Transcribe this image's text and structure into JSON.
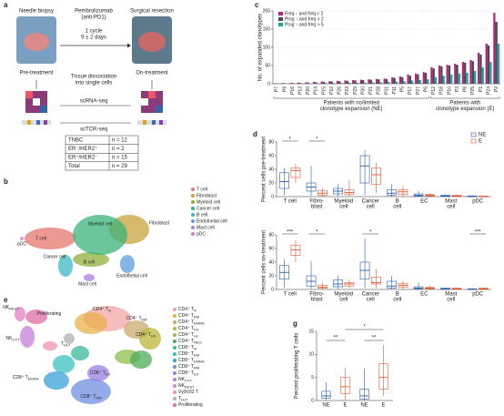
{
  "figure": {
    "a": {
      "letter": "a",
      "needle": "Needle biopsy",
      "drug": "Pembrolizumab",
      "drug2": "(anti-PD1)",
      "cycle": "1 cycle",
      "days": "9 ± 2 days",
      "surgery": "Surgical resection",
      "pre": "Pre-treatment",
      "on": "On-treatment",
      "dissoc1": "Tissue dissociation",
      "dissoc2": "into single cells",
      "rna": "scRNA-seq",
      "tcr": "scTCR-seq",
      "table": [
        [
          "TNBC",
          "n = 12"
        ],
        [
          "ER⁻/HER2⁺",
          "n = 2"
        ],
        [
          "ER⁺/HER2⁻",
          "n = 15"
        ],
        [
          "Total",
          "n = 29"
        ]
      ]
    },
    "b": {
      "letter": "b",
      "legend": [
        {
          "name": "T cell",
          "color": "#e8766d"
        },
        {
          "name": "Fibroblast",
          "color": "#c9a23a"
        },
        {
          "name": "Myeloid cell",
          "color": "#8fb03a"
        },
        {
          "name": "Cancer cell",
          "color": "#3bb37a"
        },
        {
          "name": "B cell",
          "color": "#3bb8c4"
        },
        {
          "name": "Endothelial cell",
          "color": "#5a9ee0"
        },
        {
          "name": "Mast cell",
          "color": "#a980e0"
        },
        {
          "name": "pDC",
          "color": "#e075c8"
        }
      ]
    },
    "e": {
      "letter": "e",
      "legend": [
        {
          "text": "CD4⁺ T",
          "sub": "N",
          "color": "#f4a6a6"
        },
        {
          "text": "CD4⁺ T",
          "sub": "EM",
          "color": "#e8b04a"
        },
        {
          "text": "CD4⁺ T",
          "sub": "EMRA",
          "color": "#c9a96b"
        },
        {
          "text": "CD4⁺ T",
          "sub": "FH",
          "color": "#b8b83a"
        },
        {
          "text": "CD4⁺ T",
          "sub": "H1",
          "color": "#8fbf4a"
        },
        {
          "text": "CD4⁺ T",
          "sub": "REG",
          "color": "#4dab5a"
        },
        {
          "text": "CD8⁺ T",
          "sub": "N",
          "color": "#39b89a"
        },
        {
          "text": "CD8⁺ T",
          "sub": "EM",
          "color": "#3bbfc0"
        },
        {
          "text": "CD8⁺ T",
          "sub": "EMRA",
          "color": "#3aa0d8"
        },
        {
          "text": "CD8⁺ T",
          "sub": "RM",
          "color": "#6f8fe0"
        },
        {
          "text": "CD8⁺ T",
          "sub": "EX",
          "color": "#9a7fe0"
        },
        {
          "text": "NK",
          "sub": "CYT",
          "color": "#c37fd8"
        },
        {
          "text": "NK",
          "sub": "REST",
          "color": "#e07fc8"
        },
        {
          "text": "Vγ9Vδ2 T",
          "color": "#f08fb0"
        },
        {
          "text": "T",
          "sub": "H17",
          "color": "#b0b0b0"
        },
        {
          "text": "Proliferating",
          "color": "#e06aa8"
        }
      ]
    }
  },
  "chart_data": [
    {
      "type": "bar",
      "panel": "c",
      "y_label": "No. of expanded clonotypes",
      "categories": [
        "P7",
        "P9",
        "P16",
        "P13",
        "P20",
        "P14",
        "P15",
        "P22",
        "P26",
        "P23",
        "P29",
        "P30",
        "P21",
        "P28",
        "P31",
        "P11",
        "P5",
        "P17",
        "P27",
        "P6",
        "P12",
        "P18",
        "P10",
        "P3",
        "P8",
        "P25",
        "P1",
        "P24",
        "P2"
      ],
      "series": [
        {
          "name": "Freq ↑ and freq > 2",
          "color": "#b5267a",
          "values": [
            1,
            2,
            2,
            3,
            4,
            5,
            6,
            7,
            8,
            9,
            10,
            11,
            12,
            13,
            14,
            18,
            20,
            25,
            28,
            32,
            45,
            50,
            52,
            55,
            60,
            65,
            85,
            110,
            195
          ]
        },
        {
          "name": "Prog ↑ and freq > 2",
          "color": "#4a4a5a",
          "values": [
            1,
            1,
            2,
            2,
            3,
            4,
            5,
            6,
            7,
            8,
            9,
            10,
            11,
            12,
            13,
            16,
            18,
            22,
            26,
            30,
            42,
            48,
            50,
            52,
            58,
            62,
            80,
            105,
            170
          ]
        },
        {
          "name": "Prog ↑ and freq > 5",
          "color": "#1aa39a",
          "values": [
            0,
            0,
            0,
            1,
            1,
            1,
            2,
            2,
            2,
            3,
            3,
            3,
            4,
            4,
            5,
            6,
            7,
            9,
            10,
            12,
            18,
            22,
            25,
            28,
            30,
            35,
            45,
            60,
            110
          ]
        }
      ],
      "ylim": [
        0,
        200
      ],
      "yticks": [
        0,
        50,
        100,
        150,
        200
      ],
      "grid": true,
      "groups": [
        {
          "from": "P7",
          "to": "P6",
          "label": [
            "Patients with no/limited",
            "clonotype expansion (NE)"
          ]
        },
        {
          "from": "P12",
          "to": "P2",
          "label": [
            "Patients with",
            "clonotype expansion (E)"
          ]
        }
      ]
    },
    {
      "type": "box",
      "panel": "d",
      "y_label": "Percent cells pre-treatment",
      "categories": [
        [
          "T cell"
        ],
        [
          "Fibro-",
          "blast"
        ],
        [
          "Myeloid",
          "cell"
        ],
        [
          "Cancer",
          "cell"
        ],
        [
          "B",
          "cell"
        ],
        [
          "EC"
        ],
        [
          "Mast",
          "cell"
        ],
        [
          "pDC"
        ]
      ],
      "series": [
        {
          "name": "NE",
          "color": "#2a5ea8",
          "boxes": [
            [
              2,
              12,
              22,
              35,
              42
            ],
            [
              1,
              8,
              14,
              20,
              45
            ],
            [
              1,
              4,
              8,
              12,
              18
            ],
            [
              2,
              20,
              45,
              60,
              68
            ],
            [
              0,
              2,
              5,
              10,
              18
            ],
            [
              0,
              1,
              2,
              4,
              8
            ],
            [
              0,
              0.5,
              1,
              2,
              3
            ],
            [
              0,
              0,
              0.5,
              1,
              2
            ]
          ]
        },
        {
          "name": "E",
          "color": "#e2572d",
          "boxes": [
            [
              20,
              28,
              38,
              42,
              48
            ],
            [
              0,
              2,
              5,
              9,
              12
            ],
            [
              0,
              3,
              6,
              10,
              25
            ],
            [
              5,
              18,
              32,
              42,
              50
            ],
            [
              0,
              3,
              7,
              10,
              15
            ],
            [
              0,
              1,
              2,
              3,
              5
            ],
            [
              0,
              0.5,
              1,
              2,
              3
            ],
            [
              0,
              0,
              0.3,
              0.8,
              1.5
            ]
          ]
        }
      ],
      "ylim": [
        0,
        80
      ],
      "yticks": [
        0,
        20,
        40,
        60,
        80
      ],
      "annotations": [
        "*",
        "*"
      ]
    },
    {
      "type": "box",
      "y_label": "Percent cells on-treatment",
      "categories": [
        [
          "T cell"
        ],
        [
          "Fibro-",
          "blast"
        ],
        [
          "Myeloid",
          "cell"
        ],
        [
          "Cancer",
          "cell"
        ],
        [
          "B",
          "cell"
        ],
        [
          "EC"
        ],
        [
          "Mast",
          "cell"
        ],
        [
          "pDC"
        ]
      ],
      "series": [
        {
          "name": "NE",
          "color": "#2a5ea8",
          "boxes": [
            [
              2,
              15,
              25,
              35,
              45
            ],
            [
              1,
              5,
              12,
              20,
              42
            ],
            [
              1,
              4,
              8,
              14,
              20
            ],
            [
              2,
              15,
              28,
              40,
              75
            ],
            [
              0,
              2,
              5,
              12,
              20
            ],
            [
              0,
              1,
              2,
              4,
              10
            ],
            [
              0,
              0.5,
              1,
              2,
              3
            ],
            [
              0,
              0,
              0.5,
              1,
              2
            ]
          ]
        },
        {
          "name": "E",
          "color": "#e2572d",
          "boxes": [
            [
              40,
              50,
              58,
              65,
              72
            ],
            [
              0,
              2,
              3,
              6,
              10
            ],
            [
              2,
              5,
              8,
              10,
              14
            ],
            [
              2,
              8,
              10,
              18,
              30
            ],
            [
              0,
              3,
              6,
              9,
              12
            ],
            [
              0,
              1,
              2,
              3,
              6
            ],
            [
              0,
              0.5,
              1,
              2,
              3
            ],
            [
              0,
              0.2,
              1,
              2,
              3
            ]
          ]
        }
      ],
      "ylim": [
        0,
        80
      ],
      "yticks": [
        0,
        20,
        40,
        60,
        80
      ],
      "annotations": [
        "***",
        "*",
        "*",
        "***"
      ]
    },
    {
      "type": "box",
      "panel": "g",
      "y_label": "Percent proliferating T cells",
      "categories": [
        [
          "NE"
        ],
        [
          "E"
        ],
        [
          "NE"
        ],
        [
          "E"
        ]
      ],
      "colors": [
        "#2a5ea8",
        "#e2572d",
        "#2a5ea8",
        "#e2572d"
      ],
      "boxes": [
        [
          0,
          0.5,
          1,
          2,
          4
        ],
        [
          0,
          1.5,
          3,
          5,
          7
        ],
        [
          0,
          0.3,
          1,
          2.5,
          7
        ],
        [
          1,
          2.5,
          5,
          8,
          12
        ]
      ],
      "ylim": [
        0,
        15
      ],
      "yticks": [
        0,
        5,
        10,
        15
      ],
      "annotations": [
        "**",
        "*",
        "**"
      ]
    }
  ]
}
